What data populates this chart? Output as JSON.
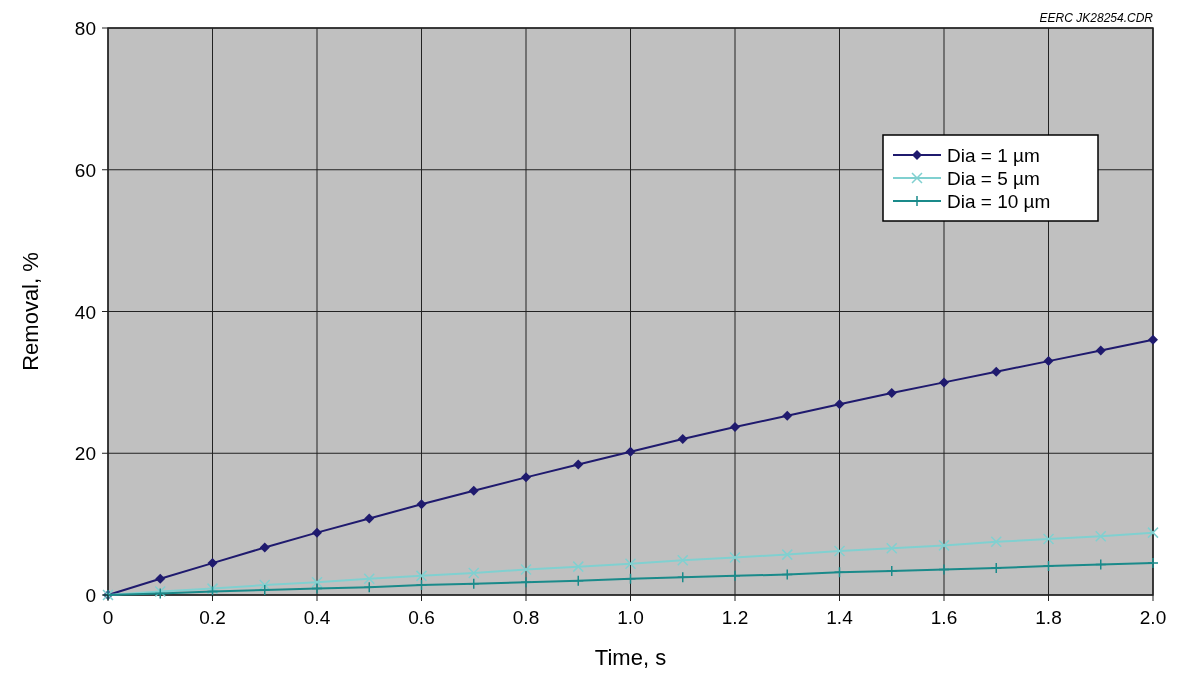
{
  "chart_data": {
    "type": "line",
    "xlabel": "Time, s",
    "ylabel": "Removal, %",
    "annotations": [
      "EERC JK28254.CDR"
    ],
    "x": [
      0,
      0.1,
      0.2,
      0.3,
      0.4,
      0.5,
      0.6,
      0.7,
      0.8,
      0.9,
      1.0,
      1.1,
      1.2,
      1.3,
      1.4,
      1.5,
      1.6,
      1.7,
      1.8,
      1.9,
      2.0
    ],
    "series": [
      {
        "name": "Dia = 1 µm",
        "color": "#1f1a6e",
        "marker": "diamond",
        "values": [
          0,
          2.3,
          4.5,
          6.7,
          8.8,
          10.8,
          12.8,
          14.7,
          16.6,
          18.4,
          20.2,
          22.0,
          23.7,
          25.3,
          26.9,
          28.5,
          30.0,
          31.5,
          33.0,
          34.5,
          36.0
        ]
      },
      {
        "name": "Dia = 5 µm",
        "color": "#80d0d0",
        "marker": "cross",
        "values": [
          0,
          0.5,
          0.9,
          1.4,
          1.8,
          2.3,
          2.7,
          3.1,
          3.6,
          4.0,
          4.4,
          4.9,
          5.3,
          5.7,
          6.2,
          6.6,
          7.0,
          7.5,
          7.9,
          8.3,
          8.8
        ]
      },
      {
        "name": "Dia = 10 µm",
        "color": "#1a8a8a",
        "marker": "plus",
        "values": [
          0,
          0.2,
          0.5,
          0.7,
          0.9,
          1.1,
          1.4,
          1.6,
          1.8,
          2.0,
          2.3,
          2.5,
          2.7,
          2.9,
          3.2,
          3.4,
          3.6,
          3.8,
          4.1,
          4.3,
          4.5
        ]
      }
    ],
    "xlim": [
      0,
      2
    ],
    "xticks": [
      0,
      0.2,
      0.4,
      0.6,
      0.8,
      {
        "value": 1,
        "label": "1.0"
      },
      1.2,
      1.4,
      1.6,
      1.8,
      {
        "value": 2,
        "label": "2.0"
      }
    ],
    "ylim": [
      0,
      80
    ],
    "yticks": [
      0,
      20,
      40,
      60,
      80
    ],
    "grid": true,
    "legend": "top right",
    "line_style": "solid"
  }
}
